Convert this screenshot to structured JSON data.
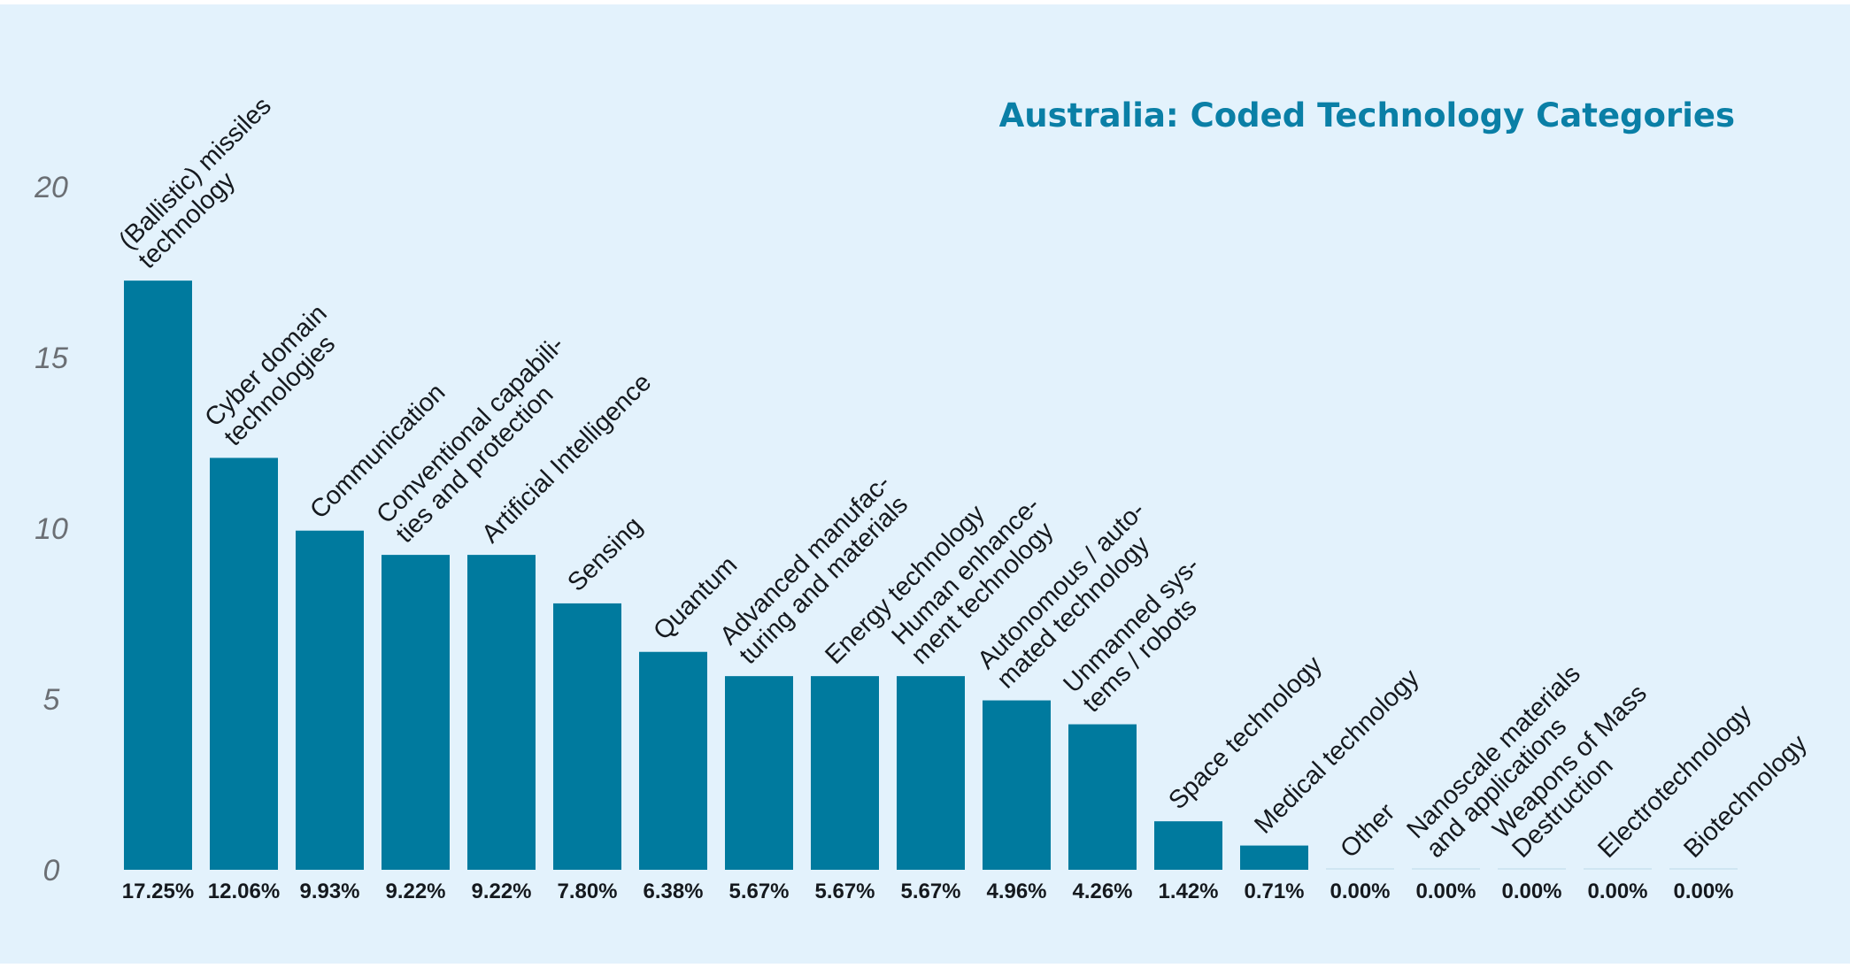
{
  "chart_data": {
    "type": "bar",
    "title": "Australia: Coded Technology Categories",
    "xlabel": "",
    "ylabel": "",
    "ylim": [
      0,
      20
    ],
    "yticks": [
      "0",
      "5",
      "10",
      "15",
      "20"
    ],
    "grid": false,
    "bar_color": "#007a9e",
    "zero_bar_color": "#cfe6f2",
    "categories": [
      [
        "(Ballistic) missiles",
        "technology"
      ],
      [
        "Cyber domain",
        "technologies"
      ],
      [
        "Communication"
      ],
      [
        "Conventional capabili-",
        "ties and protection"
      ],
      [
        "Artificial Intelligence"
      ],
      [
        "Sensing"
      ],
      [
        "Quantum"
      ],
      [
        "Advanced manufac-",
        "turing and materials"
      ],
      [
        "Energy technology"
      ],
      [
        "Human enhance-",
        "ment technology"
      ],
      [
        "Autonomous / auto-",
        "mated technology"
      ],
      [
        "Unmanned sys-",
        "tems / robots"
      ],
      [
        "Space technology"
      ],
      [
        "Medical technology"
      ],
      [
        "Other"
      ],
      [
        "Nanoscale materials",
        "and applications"
      ],
      [
        "Weapons of Mass",
        "Destruction"
      ],
      [
        "Electrotechnology"
      ],
      [
        "Biotechnology"
      ]
    ],
    "values": [
      17.25,
      12.06,
      9.93,
      9.22,
      9.22,
      7.8,
      6.38,
      5.67,
      5.67,
      5.67,
      4.96,
      4.26,
      1.42,
      0.71,
      0.0,
      0.0,
      0.0,
      0.0,
      0.0
    ],
    "value_labels": [
      "17.25%",
      "12.06%",
      "9.93%",
      "9.22%",
      "9.22%",
      "7.80%",
      "6.38%",
      "5.67%",
      "5.67%",
      "5.67%",
      "4.96%",
      "4.26%",
      "1.42%",
      "0.71%",
      "0.00%",
      "0.00%",
      "0.00%",
      "0.00%",
      "0.00%"
    ]
  }
}
